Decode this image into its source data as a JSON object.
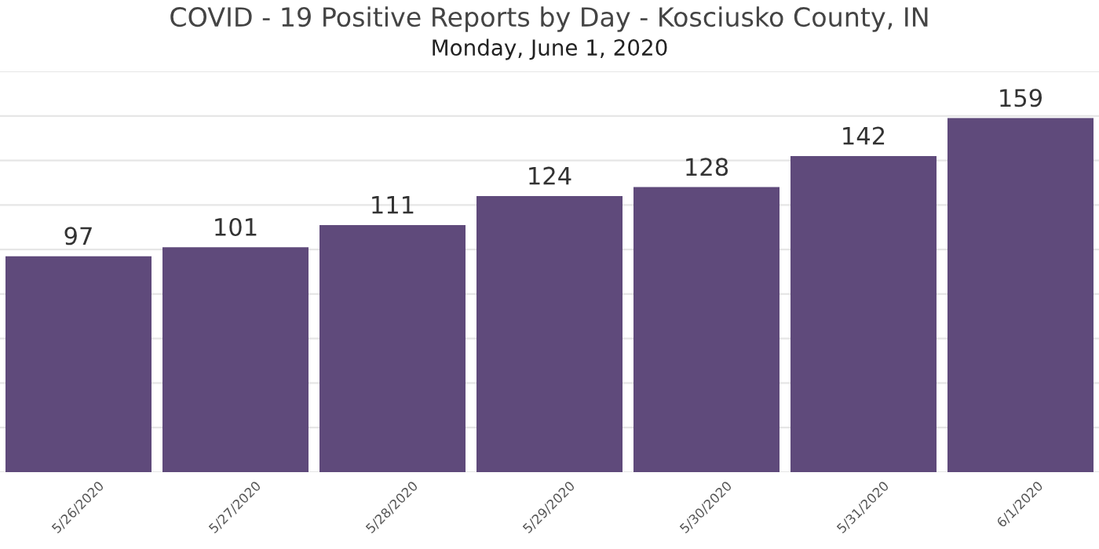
{
  "chart_data": {
    "type": "bar",
    "title": "COVID - 19 Positive Reports by Day - Kosciusko County, IN",
    "subtitle": "Monday, June 1, 2020",
    "categories": [
      "5/26/2020",
      "5/27/2020",
      "5/28/2020",
      "5/29/2020",
      "5/30/2020",
      "5/31/2020",
      "6/1/2020"
    ],
    "values": [
      97,
      101,
      111,
      124,
      128,
      142,
      159
    ],
    "color": "#5f4a7b",
    "data_labels": true,
    "ylim": [
      0,
      180
    ],
    "yticks": [
      {
        "value": 0,
        "label": null
      },
      {
        "value": 20,
        "label": null
      },
      {
        "value": 40,
        "label": null
      },
      {
        "value": 60,
        "label": null
      },
      {
        "value": 80,
        "label": null
      },
      {
        "value": 100,
        "label": null
      },
      {
        "value": 120,
        "label": null
      },
      {
        "value": 140,
        "label": null
      },
      {
        "value": 160,
        "label": null
      },
      {
        "value": 180,
        "label": null
      }
    ],
    "grid": "y",
    "tick_labels": "x",
    "legend": false
  }
}
